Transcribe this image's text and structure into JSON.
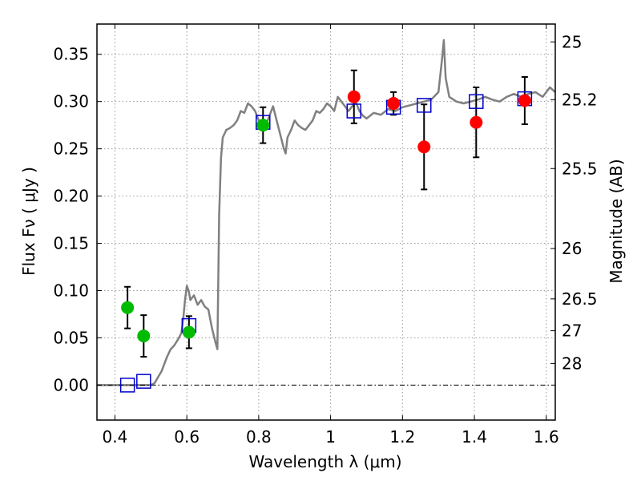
{
  "chart_data": {
    "type": "scatter",
    "xlabel": "Wavelength  λ (μm)",
    "ylabel": "Flux  Fν  ( μJy )",
    "ylabel_right": "Magnitude (AB)",
    "xlim": [
      0.35,
      1.625
    ],
    "ylim": [
      -0.037,
      0.382
    ],
    "grid": true,
    "xticks": [
      0.4,
      0.6,
      0.8,
      1.0,
      1.2,
      1.4,
      1.6
    ],
    "xtick_labels": [
      "0.4",
      "0.6",
      "0.8",
      "1",
      "1.2",
      "1.4",
      "1.6"
    ],
    "yticks": [
      0.0,
      0.05,
      0.1,
      0.15,
      0.2,
      0.25,
      0.3,
      0.35
    ],
    "ytick_labels": [
      "0.00",
      "0.05",
      "0.10",
      "0.15",
      "0.20",
      "0.25",
      "0.30",
      "0.35"
    ],
    "right_ticks": [
      {
        "label": "25",
        "flux": 0.3631
      },
      {
        "label": "25.2",
        "flux": 0.302
      },
      {
        "label": "25.5",
        "flux": 0.2291
      },
      {
        "label": "26",
        "flux": 0.1445
      },
      {
        "label": "26.5",
        "flux": 0.0912
      },
      {
        "label": "27",
        "flux": 0.0575
      },
      {
        "label": "28",
        "flux": 0.0229
      }
    ],
    "zero_line": 0.0,
    "colors": {
      "model": "#808080",
      "model_photometry": "#0000cc",
      "optical_obs": "#00bb00",
      "nir_obs": "#ff0000",
      "errorbar": "#000000",
      "grid": "#9a9a9a"
    },
    "series": [
      {
        "name": "model_spectrum",
        "kind": "line",
        "points": [
          [
            0.35,
            0.0
          ],
          [
            0.5,
            0.0
          ],
          [
            0.51,
            0.002
          ],
          [
            0.53,
            0.015
          ],
          [
            0.545,
            0.03
          ],
          [
            0.555,
            0.038
          ],
          [
            0.565,
            0.042
          ],
          [
            0.575,
            0.048
          ],
          [
            0.585,
            0.055
          ],
          [
            0.59,
            0.07
          ],
          [
            0.595,
            0.09
          ],
          [
            0.6,
            0.105
          ],
          [
            0.605,
            0.1
          ],
          [
            0.61,
            0.09
          ],
          [
            0.62,
            0.095
          ],
          [
            0.63,
            0.085
          ],
          [
            0.64,
            0.09
          ],
          [
            0.65,
            0.083
          ],
          [
            0.66,
            0.08
          ],
          [
            0.665,
            0.07
          ],
          [
            0.67,
            0.06
          ],
          [
            0.68,
            0.045
          ],
          [
            0.685,
            0.038
          ],
          [
            0.69,
            0.18
          ],
          [
            0.695,
            0.24
          ],
          [
            0.7,
            0.262
          ],
          [
            0.71,
            0.27
          ],
          [
            0.72,
            0.272
          ],
          [
            0.73,
            0.275
          ],
          [
            0.74,
            0.28
          ],
          [
            0.75,
            0.29
          ],
          [
            0.76,
            0.288
          ],
          [
            0.77,
            0.298
          ],
          [
            0.78,
            0.295
          ],
          [
            0.79,
            0.29
          ],
          [
            0.8,
            0.28
          ],
          [
            0.81,
            0.272
          ],
          [
            0.82,
            0.275
          ],
          [
            0.83,
            0.285
          ],
          [
            0.84,
            0.295
          ],
          [
            0.85,
            0.28
          ],
          [
            0.86,
            0.265
          ],
          [
            0.87,
            0.25
          ],
          [
            0.875,
            0.245
          ],
          [
            0.88,
            0.262
          ],
          [
            0.89,
            0.27
          ],
          [
            0.9,
            0.28
          ],
          [
            0.91,
            0.275
          ],
          [
            0.92,
            0.272
          ],
          [
            0.93,
            0.27
          ],
          [
            0.94,
            0.275
          ],
          [
            0.95,
            0.28
          ],
          [
            0.96,
            0.29
          ],
          [
            0.97,
            0.288
          ],
          [
            0.98,
            0.292
          ],
          [
            0.99,
            0.298
          ],
          [
            1.0,
            0.295
          ],
          [
            1.01,
            0.29
          ],
          [
            1.02,
            0.305
          ],
          [
            1.03,
            0.3
          ],
          [
            1.04,
            0.295
          ],
          [
            1.05,
            0.29
          ],
          [
            1.06,
            0.295
          ],
          [
            1.07,
            0.3
          ],
          [
            1.08,
            0.29
          ],
          [
            1.09,
            0.285
          ],
          [
            1.1,
            0.282
          ],
          [
            1.12,
            0.288
          ],
          [
            1.14,
            0.286
          ],
          [
            1.16,
            0.292
          ],
          [
            1.18,
            0.29
          ],
          [
            1.2,
            0.294
          ],
          [
            1.22,
            0.296
          ],
          [
            1.24,
            0.298
          ],
          [
            1.26,
            0.3
          ],
          [
            1.28,
            0.302
          ],
          [
            1.3,
            0.31
          ],
          [
            1.31,
            0.345
          ],
          [
            1.315,
            0.365
          ],
          [
            1.32,
            0.325
          ],
          [
            1.33,
            0.305
          ],
          [
            1.35,
            0.3
          ],
          [
            1.37,
            0.298
          ],
          [
            1.39,
            0.3
          ],
          [
            1.41,
            0.302
          ],
          [
            1.43,
            0.305
          ],
          [
            1.45,
            0.302
          ],
          [
            1.47,
            0.3
          ],
          [
            1.49,
            0.305
          ],
          [
            1.51,
            0.308
          ],
          [
            1.53,
            0.305
          ],
          [
            1.55,
            0.308
          ],
          [
            1.57,
            0.31
          ],
          [
            1.59,
            0.305
          ],
          [
            1.61,
            0.315
          ],
          [
            1.625,
            0.31
          ]
        ]
      },
      {
        "name": "model_photometry",
        "kind": "open_square",
        "points": [
          [
            0.435,
            0.0
          ],
          [
            0.48,
            0.004
          ],
          [
            0.606,
            0.063
          ],
          [
            0.812,
            0.278
          ],
          [
            1.065,
            0.29
          ],
          [
            1.175,
            0.294
          ],
          [
            1.26,
            0.296
          ],
          [
            1.405,
            0.3
          ],
          [
            1.54,
            0.303
          ]
        ]
      },
      {
        "name": "optical_observed",
        "kind": "filled_circle",
        "points": [
          [
            0.435,
            0.082,
            0.022
          ],
          [
            0.48,
            0.052,
            0.022
          ],
          [
            0.606,
            0.056,
            0.017
          ],
          [
            0.812,
            0.275,
            0.019
          ]
        ]
      },
      {
        "name": "nir_observed",
        "kind": "filled_circle",
        "points": [
          [
            1.065,
            0.305,
            0.028
          ],
          [
            1.175,
            0.298,
            0.012
          ],
          [
            1.26,
            0.252,
            0.045
          ],
          [
            1.405,
            0.278,
            0.037
          ],
          [
            1.54,
            0.301,
            0.025
          ]
        ]
      }
    ]
  }
}
